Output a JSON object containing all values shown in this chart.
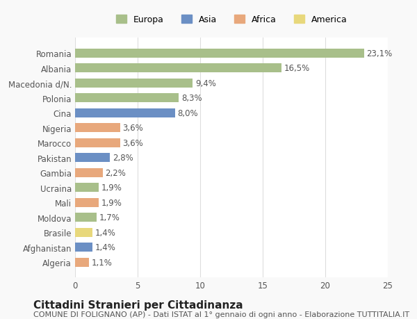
{
  "countries": [
    "Romania",
    "Albania",
    "Macedonia d/N.",
    "Polonia",
    "Cina",
    "Nigeria",
    "Marocco",
    "Pakistan",
    "Gambia",
    "Ucraina",
    "Mali",
    "Moldova",
    "Brasile",
    "Afghanistan",
    "Algeria"
  ],
  "values": [
    23.1,
    16.5,
    9.4,
    8.3,
    8.0,
    3.6,
    3.6,
    2.8,
    2.2,
    1.9,
    1.9,
    1.7,
    1.4,
    1.4,
    1.1
  ],
  "continents": [
    "Europa",
    "Europa",
    "Europa",
    "Europa",
    "Asia",
    "Africa",
    "Africa",
    "Asia",
    "Africa",
    "Europa",
    "Africa",
    "Europa",
    "America",
    "Asia",
    "Africa"
  ],
  "continent_colors": {
    "Europa": "#a8bf8a",
    "Asia": "#6b8fc4",
    "Africa": "#e8a87c",
    "America": "#e8d87c"
  },
  "legend_order": [
    "Europa",
    "Asia",
    "Africa",
    "America"
  ],
  "title": "Cittadini Stranieri per Cittadinanza",
  "subtitle": "COMUNE DI FOLIGNANO (AP) - Dati ISTAT al 1° gennaio di ogni anno - Elaborazione TUTTITALIA.IT",
  "xlim": [
    0,
    25
  ],
  "xticks": [
    0,
    5,
    10,
    15,
    20,
    25
  ],
  "background_color": "#f9f9f9",
  "bar_background": "#ffffff",
  "grid_color": "#dddddd",
  "label_color": "#555555",
  "value_color": "#555555",
  "title_fontsize": 11,
  "subtitle_fontsize": 8,
  "tick_fontsize": 8.5,
  "value_fontsize": 8.5
}
